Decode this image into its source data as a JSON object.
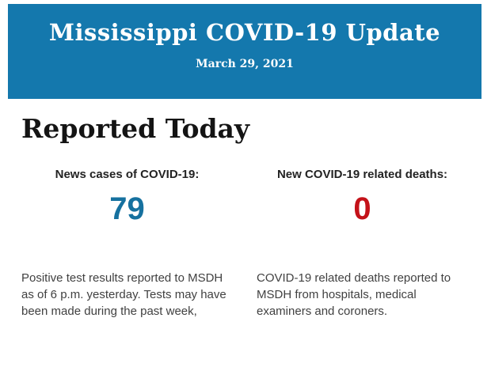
{
  "banner": {
    "title": "Mississippi COVID-19 Update",
    "date": "March 29, 2021",
    "bg_color": "#1478ad",
    "text_color": "#ffffff"
  },
  "section": {
    "heading": "Reported Today"
  },
  "stats": [
    {
      "label": "News cases of COVID-19:",
      "value": "79",
      "value_color": "#16719f",
      "value_style": "color:#16719f",
      "description": "Positive test results reported to MSDH as of 6 p.m. yesterday. Tests may have been made during the past week,"
    },
    {
      "label": "New COVID-19 related deaths:",
      "value": "0",
      "value_color": "#c41219",
      "value_style": "color:#c41219",
      "description": "COVID-19 related deaths reported to MSDH from hospitals, medical examiners and coroners."
    }
  ],
  "colors": {
    "banner_blue": "#1478ad",
    "cases_blue": "#16719f",
    "deaths_red": "#c41219",
    "heading_black": "#141414",
    "body_gray": "#414141"
  }
}
